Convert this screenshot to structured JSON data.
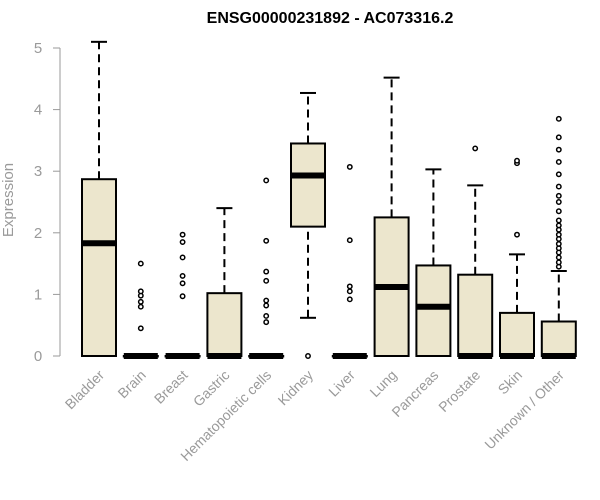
{
  "chart_data": {
    "type": "boxplot",
    "title": "ENSG00000231892 - AC073316.2",
    "ylabel": "Expression",
    "xlabel": "",
    "ylim": [
      0,
      5.1
    ],
    "yticks": [
      0,
      1,
      2,
      3,
      4,
      5
    ],
    "box_color": "#ece6cd",
    "categories": [
      "Bladder",
      "Brain",
      "Breast",
      "Gastric",
      "Hematopoietic cells",
      "Kidney",
      "Liver",
      "Lung",
      "Pancreas",
      "Prostate",
      "Skin",
      "Unknown / Other"
    ],
    "series": [
      {
        "category": "Bladder",
        "min": 0,
        "q1": 0,
        "median": 1.83,
        "q3": 2.87,
        "max": 5.1,
        "outliers": []
      },
      {
        "category": "Brain",
        "min": 0,
        "q1": 0,
        "median": 0,
        "q3": 0,
        "max": 0,
        "outliers": [
          0.45,
          0.8,
          0.88,
          0.98,
          1.05,
          1.5
        ]
      },
      {
        "category": "Breast",
        "min": 0,
        "q1": 0,
        "median": 0,
        "q3": 0,
        "max": 0,
        "outliers": [
          0.97,
          1.18,
          1.3,
          1.6,
          1.85,
          1.97
        ]
      },
      {
        "category": "Gastric",
        "min": 0,
        "q1": 0,
        "median": 0,
        "q3": 1.02,
        "max": 2.4,
        "outliers": []
      },
      {
        "category": "Hematopoietic cells",
        "min": 0,
        "q1": 0,
        "median": 0,
        "q3": 0,
        "max": 0,
        "outliers": [
          0.55,
          0.65,
          0.82,
          0.9,
          1.22,
          1.37,
          1.87,
          2.85
        ]
      },
      {
        "category": "Kidney",
        "min": 0.62,
        "q1": 2.1,
        "median": 2.93,
        "q3": 3.45,
        "max": 4.27,
        "outliers": [
          0
        ]
      },
      {
        "category": "Liver",
        "min": 0,
        "q1": 0,
        "median": 0,
        "q3": 0,
        "max": 0,
        "outliers": [
          0.92,
          1.05,
          1.13,
          1.88,
          3.07
        ]
      },
      {
        "category": "Lung",
        "min": 0,
        "q1": 0,
        "median": 1.12,
        "q3": 2.25,
        "max": 4.52,
        "outliers": []
      },
      {
        "category": "Pancreas",
        "min": 0,
        "q1": 0,
        "median": 0.8,
        "q3": 1.47,
        "max": 3.03,
        "outliers": []
      },
      {
        "category": "Prostate",
        "min": 0,
        "q1": 0,
        "median": 0,
        "q3": 1.32,
        "max": 2.77,
        "outliers": [
          3.37
        ]
      },
      {
        "category": "Skin",
        "min": 0,
        "q1": 0,
        "median": 0,
        "q3": 0.7,
        "max": 1.65,
        "outliers": [
          1.97,
          3.13,
          3.17
        ]
      },
      {
        "category": "Unknown / Other",
        "min": 0,
        "q1": 0,
        "median": 0,
        "q3": 0.56,
        "max": 1.38,
        "outliers": [
          1.45,
          1.52,
          1.6,
          1.68,
          1.75,
          1.82,
          1.9,
          1.97,
          2.05,
          2.12,
          2.2,
          2.35,
          2.5,
          2.6,
          2.75,
          2.95,
          3.15,
          3.35,
          3.55,
          3.85
        ]
      }
    ]
  }
}
